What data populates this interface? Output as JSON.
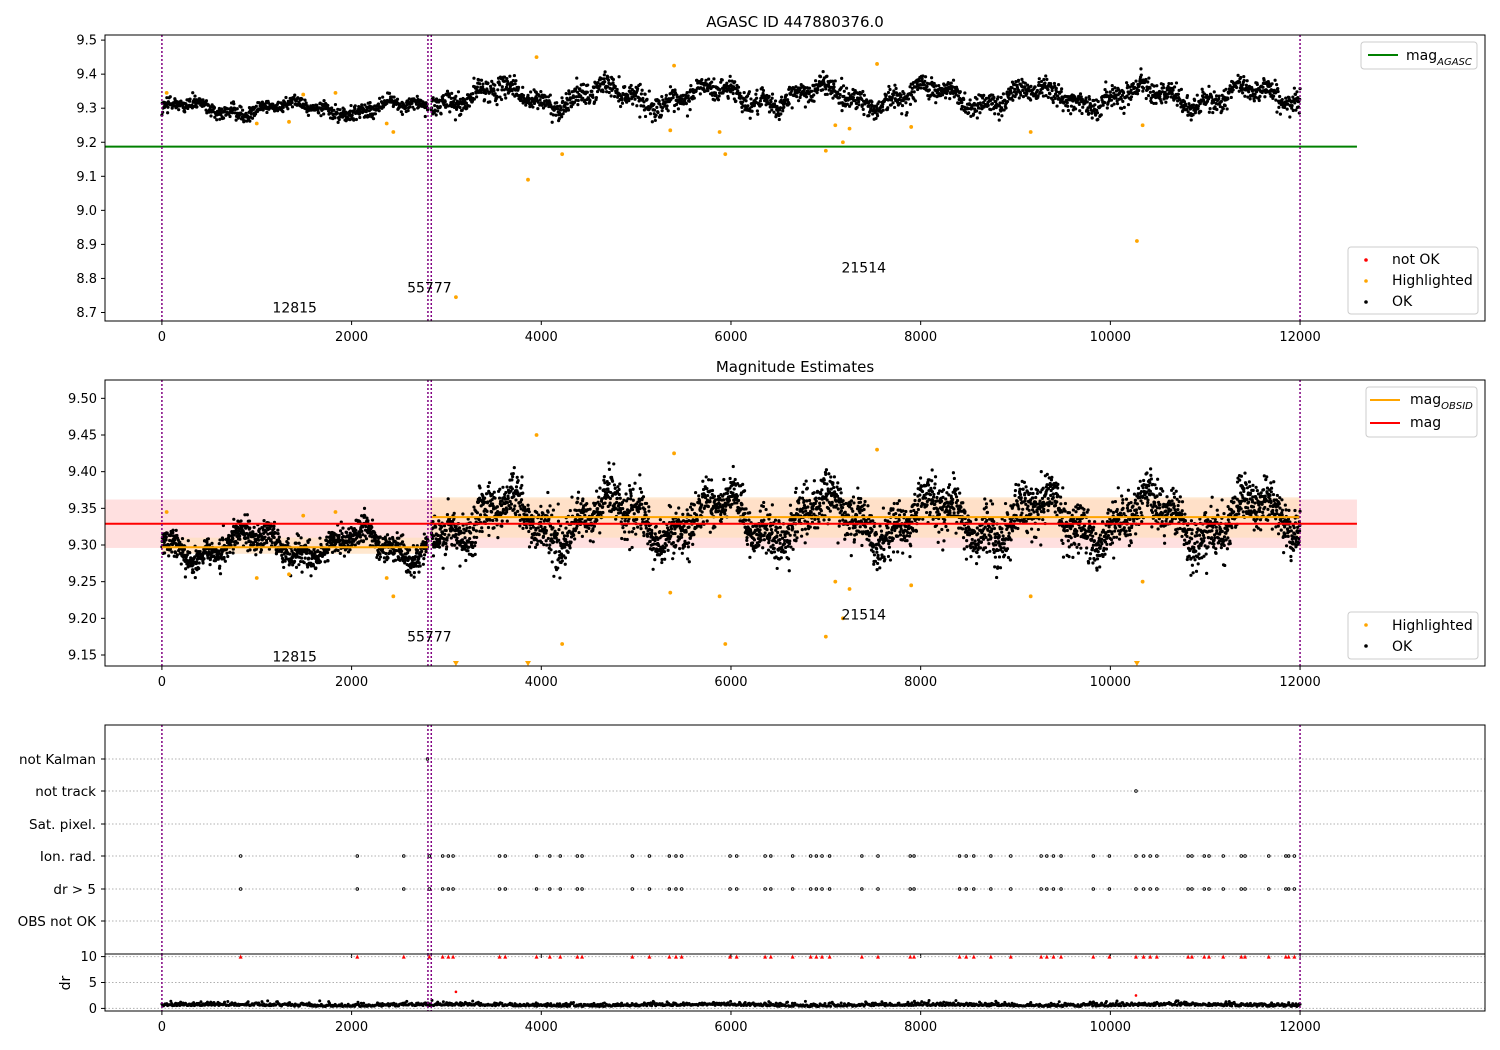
{
  "colors": {
    "ok": "#000000",
    "highlighted": "#ffa500",
    "not_ok": "#ff0000",
    "mag_agasc": "#008000",
    "mag": "#ff0000",
    "mag_obsid": "#ffa500",
    "obsid_boundary": "#800080",
    "mag_band": "#ffd6d6",
    "obsid_band": "#ffe0c0",
    "flag_marker": "#000000",
    "dr_outlier": "#ff0000"
  },
  "chart_data": [
    {
      "id": "p1",
      "type": "scatter",
      "title": "AGASC ID 447880376.0",
      "xlabel": "",
      "ylabel": "",
      "xlim": [
        -600,
        13950
      ],
      "ylim": [
        8.675,
        9.515
      ],
      "xticks": [
        0,
        2000,
        4000,
        6000,
        8000,
        10000,
        12000
      ],
      "yticks": [
        8.7,
        8.8,
        8.9,
        9.0,
        9.1,
        9.2,
        9.3,
        9.4,
        9.5
      ],
      "ytick_decimals": 1,
      "obsid_boundaries": [
        0,
        2805,
        2840,
        12000
      ],
      "obsid_labels": [
        {
          "text": "12815",
          "x": 1400,
          "y": 8.715
        },
        {
          "text": "55777",
          "x": 2820,
          "y": 8.773
        },
        {
          "text": "21514",
          "x": 7400,
          "y": 8.832
        }
      ],
      "ok_segments": [
        {
          "x0": 0,
          "x1": 2805,
          "mean": 9.3,
          "spread": 0.03,
          "n": 700
        },
        {
          "x0": 2840,
          "x1": 12000,
          "mean": 9.335,
          "spread": 0.05,
          "n": 2300
        }
      ],
      "highlighted_points": [
        [
          50,
          9.345
        ],
        [
          1000,
          9.255
        ],
        [
          1340,
          9.26
        ],
        [
          1490,
          9.34
        ],
        [
          1830,
          9.345
        ],
        [
          2370,
          9.255
        ],
        [
          2440,
          9.23
        ],
        [
          3100,
          8.745
        ],
        [
          3860,
          9.09
        ],
        [
          3950,
          9.45
        ],
        [
          4220,
          9.165
        ],
        [
          5360,
          9.235
        ],
        [
          5400,
          9.425
        ],
        [
          5880,
          9.23
        ],
        [
          5940,
          9.165
        ],
        [
          7000,
          9.175
        ],
        [
          7100,
          9.25
        ],
        [
          7180,
          9.2
        ],
        [
          7250,
          9.24
        ],
        [
          7540,
          9.43
        ],
        [
          7900,
          9.245
        ],
        [
          9160,
          9.23
        ],
        [
          10280,
          8.91
        ],
        [
          10340,
          9.25
        ]
      ],
      "lines": [
        {
          "name": "mag",
          "subscript": "AGASC",
          "value": 9.187,
          "x0": -600,
          "x1": 12600,
          "color": "#008000"
        }
      ],
      "legends": [
        {
          "position": "upper-right",
          "entries": [
            {
              "label": "mag",
              "subscript": "AGASC",
              "kind": "line",
              "color": "#008000"
            }
          ]
        },
        {
          "position": "lower-right",
          "entries": [
            {
              "label": "not OK",
              "kind": "marker",
              "color": "#ff0000"
            },
            {
              "label": "Highlighted",
              "kind": "marker",
              "color": "#ffa500"
            },
            {
              "label": "OK",
              "kind": "marker",
              "color": "#000000"
            }
          ]
        }
      ]
    },
    {
      "id": "p2",
      "type": "scatter",
      "title": "Magnitude Estimates",
      "xlabel": "",
      "ylabel": "",
      "xlim": [
        -600,
        13950
      ],
      "ylim": [
        9.135,
        9.525
      ],
      "xticks": [
        0,
        2000,
        4000,
        6000,
        8000,
        10000,
        12000
      ],
      "yticks": [
        9.15,
        9.2,
        9.25,
        9.3,
        9.35,
        9.4,
        9.45,
        9.5
      ],
      "ytick_decimals": 2,
      "obsid_boundaries": [
        0,
        2805,
        2840,
        12000
      ],
      "obsid_labels": [
        {
          "text": "12815",
          "x": 1400,
          "y": 9.148
        },
        {
          "text": "55777",
          "x": 2820,
          "y": 9.175
        },
        {
          "text": "21514",
          "x": 7400,
          "y": 9.205
        }
      ],
      "ok_segments": [
        {
          "x0": 0,
          "x1": 2805,
          "mean": 9.3,
          "spread": 0.03,
          "n": 1100
        },
        {
          "x0": 2840,
          "x1": 12000,
          "mean": 9.335,
          "spread": 0.05,
          "n": 3600
        }
      ],
      "highlighted_points": [
        [
          50,
          9.345
        ],
        [
          1000,
          9.255
        ],
        [
          1340,
          9.26
        ],
        [
          1490,
          9.34
        ],
        [
          1830,
          9.345
        ],
        [
          2370,
          9.255
        ],
        [
          2440,
          9.23
        ],
        [
          3950,
          9.45
        ],
        [
          4220,
          9.165
        ],
        [
          5360,
          9.235
        ],
        [
          5400,
          9.425
        ],
        [
          5880,
          9.23
        ],
        [
          5940,
          9.165
        ],
        [
          7000,
          9.175
        ],
        [
          7100,
          9.25
        ],
        [
          7180,
          9.2
        ],
        [
          7250,
          9.24
        ],
        [
          7540,
          9.43
        ],
        [
          7900,
          9.245
        ],
        [
          9160,
          9.23
        ],
        [
          10340,
          9.25
        ]
      ],
      "clipped_points": [
        [
          3100,
          9.135
        ],
        [
          3860,
          9.135
        ],
        [
          10280,
          9.135
        ]
      ],
      "lines": [
        {
          "name": "mag",
          "value": 9.329,
          "x0": -600,
          "x1": 12600,
          "color": "#ff0000"
        }
      ],
      "bands": [
        {
          "x0": -600,
          "x1": 12600,
          "y0": 9.296,
          "y1": 9.362,
          "color": "#ffd6d6"
        },
        {
          "x0": 0,
          "x1": 2805,
          "y0": 9.288,
          "y1": 9.31,
          "color": "#ffe0c0"
        },
        {
          "x0": 2840,
          "x1": 12000,
          "y0": 9.31,
          "y1": 9.365,
          "color": "#ffe0c0"
        }
      ],
      "obsid_means": [
        {
          "x0": 0,
          "x1": 2805,
          "value": 9.297
        },
        {
          "x0": 2840,
          "x1": 12000,
          "value": 9.338
        }
      ],
      "legends": [
        {
          "position": "upper-right",
          "entries": [
            {
              "label": "mag",
              "subscript": "OBSID",
              "kind": "line",
              "color": "#ffa500"
            },
            {
              "label": "mag",
              "kind": "line",
              "color": "#ff0000"
            }
          ]
        },
        {
          "position": "lower-right",
          "entries": [
            {
              "label": "Highlighted",
              "kind": "marker",
              "color": "#ffa500"
            },
            {
              "label": "OK",
              "kind": "marker",
              "color": "#000000"
            }
          ]
        }
      ]
    },
    {
      "id": "p3",
      "type": "scatter",
      "title": "",
      "xlim": [
        -600,
        13950
      ],
      "xticks": [
        0,
        2000,
        4000,
        6000,
        8000,
        10000,
        12000
      ],
      "obsid_boundaries": [
        0,
        2805,
        2840,
        12000
      ],
      "flag_rows": [
        "not Kalman",
        "not track",
        "Sat. pixel.",
        "Ion. rad.",
        "dr > 5",
        "OBS not OK"
      ],
      "flag_points": {
        "not Kalman": [
          2800
        ],
        "not track": [
          10270
        ],
        "Sat. pixel.": [],
        "Ion. rad.": [
          830,
          2060,
          2550,
          2820,
          2960,
          3020,
          3070,
          3560,
          3620,
          3950,
          4090,
          4200,
          4380,
          4430,
          4960,
          5140,
          5350,
          5420,
          5480,
          5990,
          6060,
          6360,
          6420,
          6650,
          6840,
          6900,
          6960,
          7040,
          7380,
          7550,
          7890,
          7930,
          8410,
          8480,
          8560,
          8740,
          8950,
          9270,
          9330,
          9400,
          9480,
          9820,
          9990,
          10270,
          10350,
          10420,
          10490,
          10820,
          10860,
          10990,
          11040,
          11190,
          11380,
          11420,
          11670,
          11850,
          11880,
          11940
        ],
        "dr > 5": [
          830,
          2060,
          2550,
          2820,
          2960,
          3020,
          3070,
          3560,
          3620,
          3950,
          4090,
          4200,
          4380,
          4430,
          4960,
          5140,
          5350,
          5420,
          5480,
          5990,
          6060,
          6360,
          6420,
          6650,
          6840,
          6900,
          6960,
          7040,
          7380,
          7550,
          7890,
          7930,
          8410,
          8480,
          8560,
          8740,
          8950,
          9270,
          9330,
          9400,
          9480,
          9820,
          9990,
          10270,
          10350,
          10420,
          10490,
          10820,
          10860,
          10990,
          11040,
          11190,
          11380,
          11420,
          11670,
          11850,
          11880,
          11940
        ],
        "OBS not OK": []
      },
      "legends": []
    },
    {
      "id": "p4",
      "type": "scatter",
      "title": "",
      "xlabel": "",
      "ylabel": "dr",
      "xlim": [
        -600,
        13950
      ],
      "ylim": [
        -0.5,
        10.5
      ],
      "xticks": [
        0,
        2000,
        4000,
        6000,
        8000,
        10000,
        12000
      ],
      "yticks": [
        0,
        5,
        10
      ],
      "ytick_decimals": 0,
      "obsid_boundaries": [
        0,
        2805,
        2840,
        12000
      ],
      "dr_baseline": {
        "x0": 0,
        "x1": 12000,
        "mean": 0.45,
        "spread": 0.55,
        "n": 1400
      },
      "dr_outliers_x": [
        830,
        2060,
        2550,
        2820,
        2960,
        3020,
        3070,
        3560,
        3620,
        3950,
        4090,
        4200,
        4380,
        4430,
        4960,
        5140,
        5350,
        5420,
        5480,
        5990,
        6060,
        6360,
        6420,
        6650,
        6840,
        6900,
        6960,
        7040,
        7380,
        7550,
        7890,
        7930,
        8410,
        8480,
        8560,
        8740,
        8950,
        9270,
        9330,
        9400,
        9480,
        9820,
        9990,
        10270,
        10350,
        10420,
        10490,
        10820,
        10860,
        10990,
        11040,
        11190,
        11380,
        11420,
        11670,
        11850,
        11880,
        11940
      ],
      "dr_outlier_value": 10,
      "extra_points": [
        [
          3100,
          3.2
        ],
        [
          10270,
          2.5
        ]
      ],
      "legends": []
    }
  ]
}
